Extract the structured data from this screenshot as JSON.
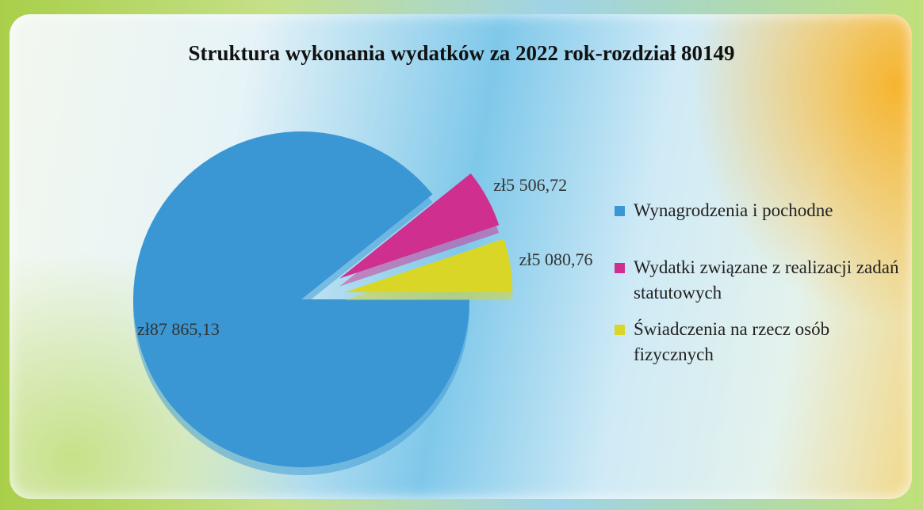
{
  "chart_data": {
    "type": "pie",
    "title": "Struktura wykonania wydatków za 2022 rok-rozdział 80149",
    "categories": [
      "Wynagrodzenia i pochodne",
      "Wydatki związane z realizacji zadań statutowych",
      "Świadczenia na rzecz osób fizycznych"
    ],
    "values": [
      87865.13,
      5506.72,
      5080.76
    ],
    "value_labels": [
      "zł87 865,13",
      "zł5 506,72",
      "zł5 080,76"
    ],
    "colors": [
      "#3a97d4",
      "#cf2f8f",
      "#d9d628"
    ],
    "exploded": [
      false,
      true,
      true
    ],
    "legend": "right"
  }
}
